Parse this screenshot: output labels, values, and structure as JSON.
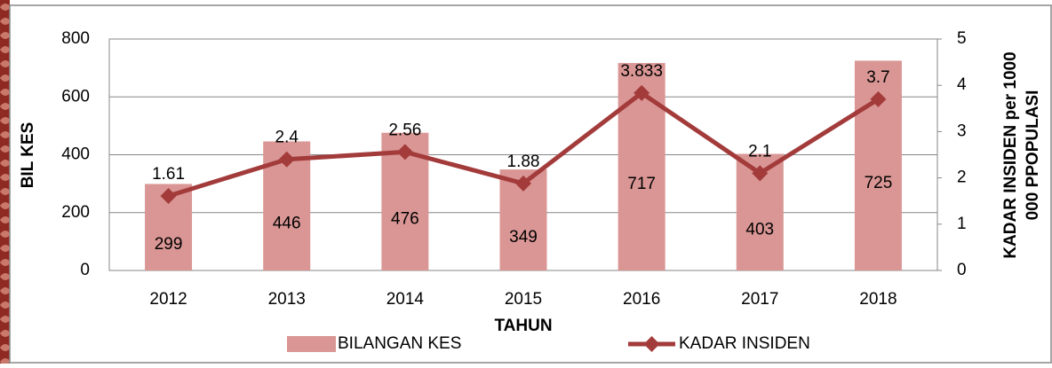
{
  "chart_data": {
    "type": "combo",
    "x_label": "TAHUN",
    "y_label": "BIL KES",
    "y2_label": [
      "KADAR INSIDEN  per 1000",
      "000 PPOPULASI"
    ],
    "categories": [
      "2012",
      "2013",
      "2014",
      "2015",
      "2016",
      "2017",
      "2018"
    ],
    "series": [
      {
        "name": "BILANGAN KES",
        "type": "bar",
        "color": "#d99694",
        "values": [
          299,
          446,
          476,
          349,
          717,
          403,
          725
        ]
      },
      {
        "name": "KADAR INSIDEN",
        "type": "line",
        "axis": "y2",
        "color": "#a33b3b",
        "values": [
          1.61,
          2.4,
          2.56,
          1.88,
          3.833,
          2.1,
          3.7
        ]
      }
    ],
    "ylim": [
      0,
      800
    ],
    "yticks": [
      0,
      200,
      400,
      600,
      800
    ],
    "y2lim": [
      0,
      5
    ],
    "y2ticks": [
      0,
      1,
      2,
      3,
      4,
      5
    ],
    "grid": true,
    "legend": "bottom"
  }
}
